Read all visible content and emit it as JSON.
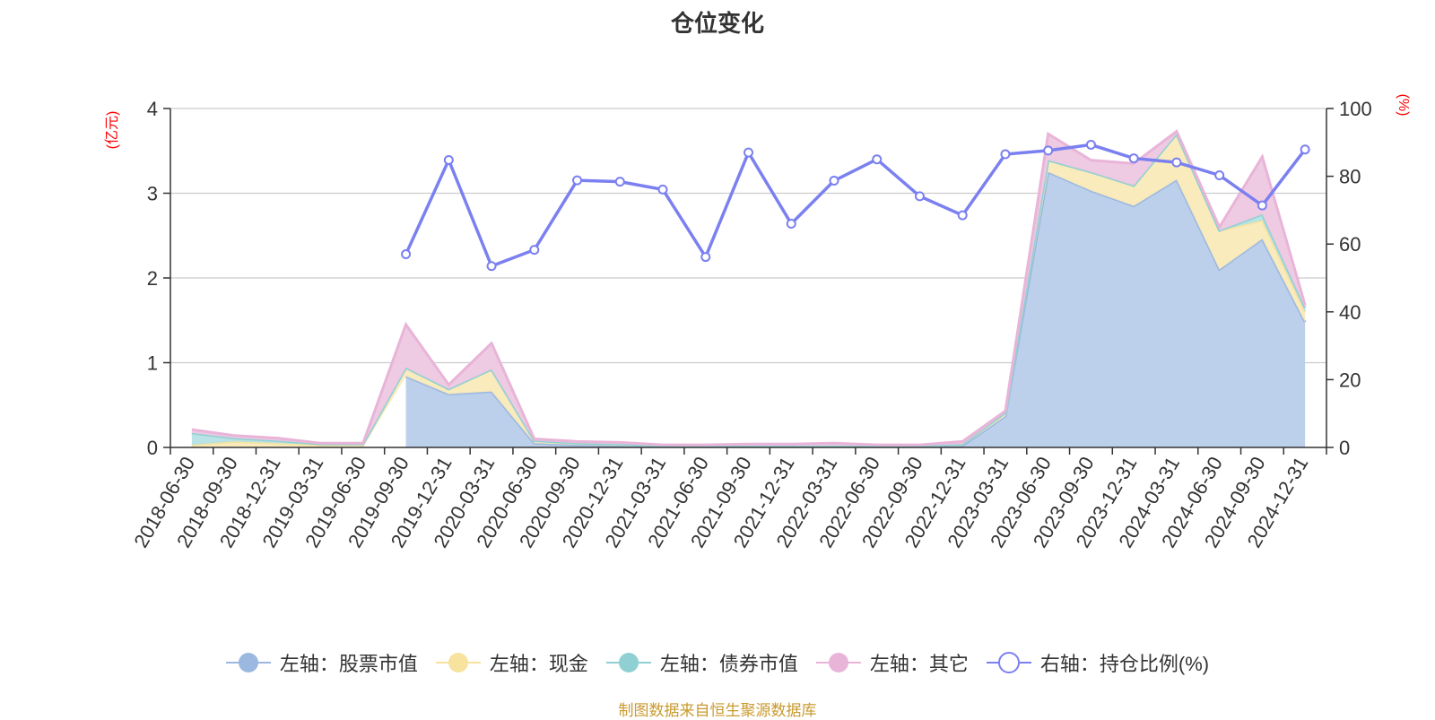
{
  "chart_data": {
    "type": "area",
    "title": "仓位变化",
    "left_axis_unit": "(亿元)",
    "right_axis_unit": "(%)",
    "categories": [
      "2018-06-30",
      "2018-09-30",
      "2018-12-31",
      "2019-03-31",
      "2019-06-30",
      "2019-09-30",
      "2019-12-31",
      "2020-03-31",
      "2020-06-30",
      "2020-09-30",
      "2020-12-31",
      "2021-03-31",
      "2021-06-30",
      "2021-09-30",
      "2021-12-31",
      "2022-03-31",
      "2022-06-30",
      "2022-09-30",
      "2022-12-31",
      "2023-03-31",
      "2023-06-30",
      "2023-09-30",
      "2023-12-31",
      "2024-03-31",
      "2024-06-30",
      "2024-09-30",
      "2024-12-31"
    ],
    "ylim_left": [
      0,
      4
    ],
    "yticks_left": [
      "0",
      "1",
      "2",
      "3",
      "4"
    ],
    "ylim_right": [
      0,
      100
    ],
    "yticks_right": [
      "0",
      "20",
      "40",
      "60",
      "80",
      "100"
    ],
    "grid": true,
    "legend_position": "bottom",
    "stack_order": [
      "股票市值",
      "现金",
      "债券市值",
      "其它"
    ],
    "series": [
      {
        "name": "左轴：股票市值",
        "axis": "left",
        "kind": "area",
        "color": "#9bb8e0",
        "fill": "#b8cdeb",
        "values": [
          null,
          null,
          null,
          null,
          null,
          0.84,
          0.63,
          0.66,
          0.05,
          0.03,
          0.02,
          0.01,
          0.01,
          0.01,
          0.01,
          0.01,
          0.01,
          0.01,
          0.02,
          0.37,
          3.25,
          3.03,
          2.85,
          3.16,
          2.1,
          2.46,
          1.48
        ]
      },
      {
        "name": "左轴：现金",
        "axis": "left",
        "kind": "area",
        "color": "#f7e29e",
        "fill": "#faeab9",
        "values": [
          0.03,
          0.07,
          0.05,
          0.03,
          0.04,
          0.1,
          0.06,
          0.26,
          0.03,
          0.02,
          0.02,
          0.01,
          0.01,
          0.01,
          0.01,
          0.01,
          0.01,
          0.01,
          0.02,
          0.04,
          0.14,
          0.22,
          0.24,
          0.54,
          0.46,
          0.22,
          0.12
        ]
      },
      {
        "name": "左轴：债券市值",
        "axis": "left",
        "kind": "area",
        "color": "#8fd1d3",
        "fill": "#b5e2e3",
        "values": [
          0.14,
          0.04,
          0.03,
          0.01,
          0.0,
          0.0,
          0.0,
          0.0,
          0.0,
          0.0,
          0.0,
          0.0,
          0.0,
          0.0,
          0.0,
          0.0,
          0.0,
          0.0,
          0.0,
          0.0,
          0.0,
          0.0,
          0.0,
          0.0,
          0.0,
          0.07,
          0.05
        ]
      },
      {
        "name": "左轴：其它",
        "axis": "left",
        "kind": "area",
        "color": "#e8b4d8",
        "fill": "#eec8e2",
        "values": [
          0.04,
          0.03,
          0.03,
          0.01,
          0.01,
          0.51,
          0.05,
          0.31,
          0.02,
          0.02,
          0.02,
          0.01,
          0.01,
          0.02,
          0.02,
          0.03,
          0.01,
          0.01,
          0.03,
          0.02,
          0.31,
          0.14,
          0.26,
          0.03,
          0.04,
          0.68,
          0.03
        ]
      },
      {
        "name": "右轴：持仓比例(%)",
        "axis": "right",
        "kind": "line",
        "color": "#7b80f0",
        "values": [
          null,
          null,
          null,
          null,
          null,
          57.0,
          84.8,
          53.5,
          58.3,
          78.8,
          78.4,
          76.1,
          56.2,
          87.0,
          66.0,
          78.7,
          85.0,
          74.1,
          68.5,
          86.5,
          87.6,
          89.3,
          85.3,
          84.1,
          80.3,
          71.4,
          87.9
        ]
      }
    ],
    "source_note": "制图数据来自恒生聚源数据库"
  }
}
